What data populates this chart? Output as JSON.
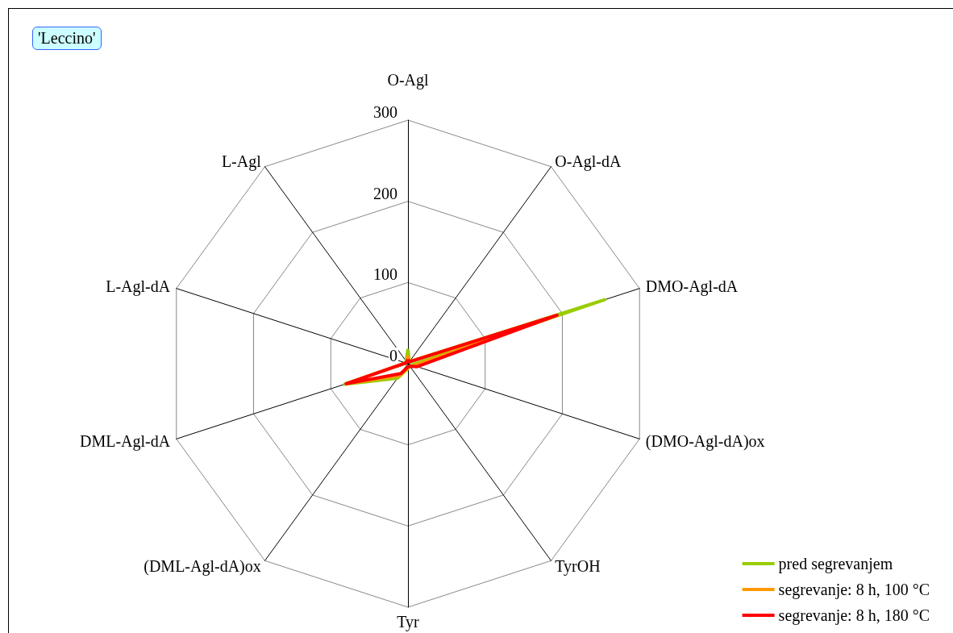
{
  "chart_data": {
    "type": "radar",
    "title": "'Leccino'",
    "categories": [
      "O-Agl",
      "O-Agl-dA",
      "DMO-Agl-dA",
      "(DMO-Agl-dA)ox",
      "TyrOH",
      "Tyr",
      "(DML-Agl-dA)ox",
      "DML-Agl-dA",
      "L-Agl-dA",
      "L-Agl"
    ],
    "series": [
      {
        "name": "pred segrevanjem",
        "color": "#99cc00",
        "values": [
          18,
          3,
          255,
          5,
          4,
          6,
          22,
          82,
          3,
          4
        ]
      },
      {
        "name": "segrevanje: 8 h, 100 °C",
        "color": "#ff9900",
        "values": [
          10,
          3,
          190,
          8,
          4,
          5,
          18,
          80,
          3,
          3
        ]
      },
      {
        "name": "segrevanje: 8 h, 180 °C",
        "color": "#ff0000",
        "values": [
          5,
          3,
          193,
          12,
          4,
          4,
          15,
          80,
          3,
          3
        ]
      }
    ],
    "ylim": [
      0,
      300
    ],
    "yticks": [
      0,
      100,
      200,
      300
    ],
    "legend": "bottom right",
    "line_style": "solid",
    "marker": "none"
  }
}
